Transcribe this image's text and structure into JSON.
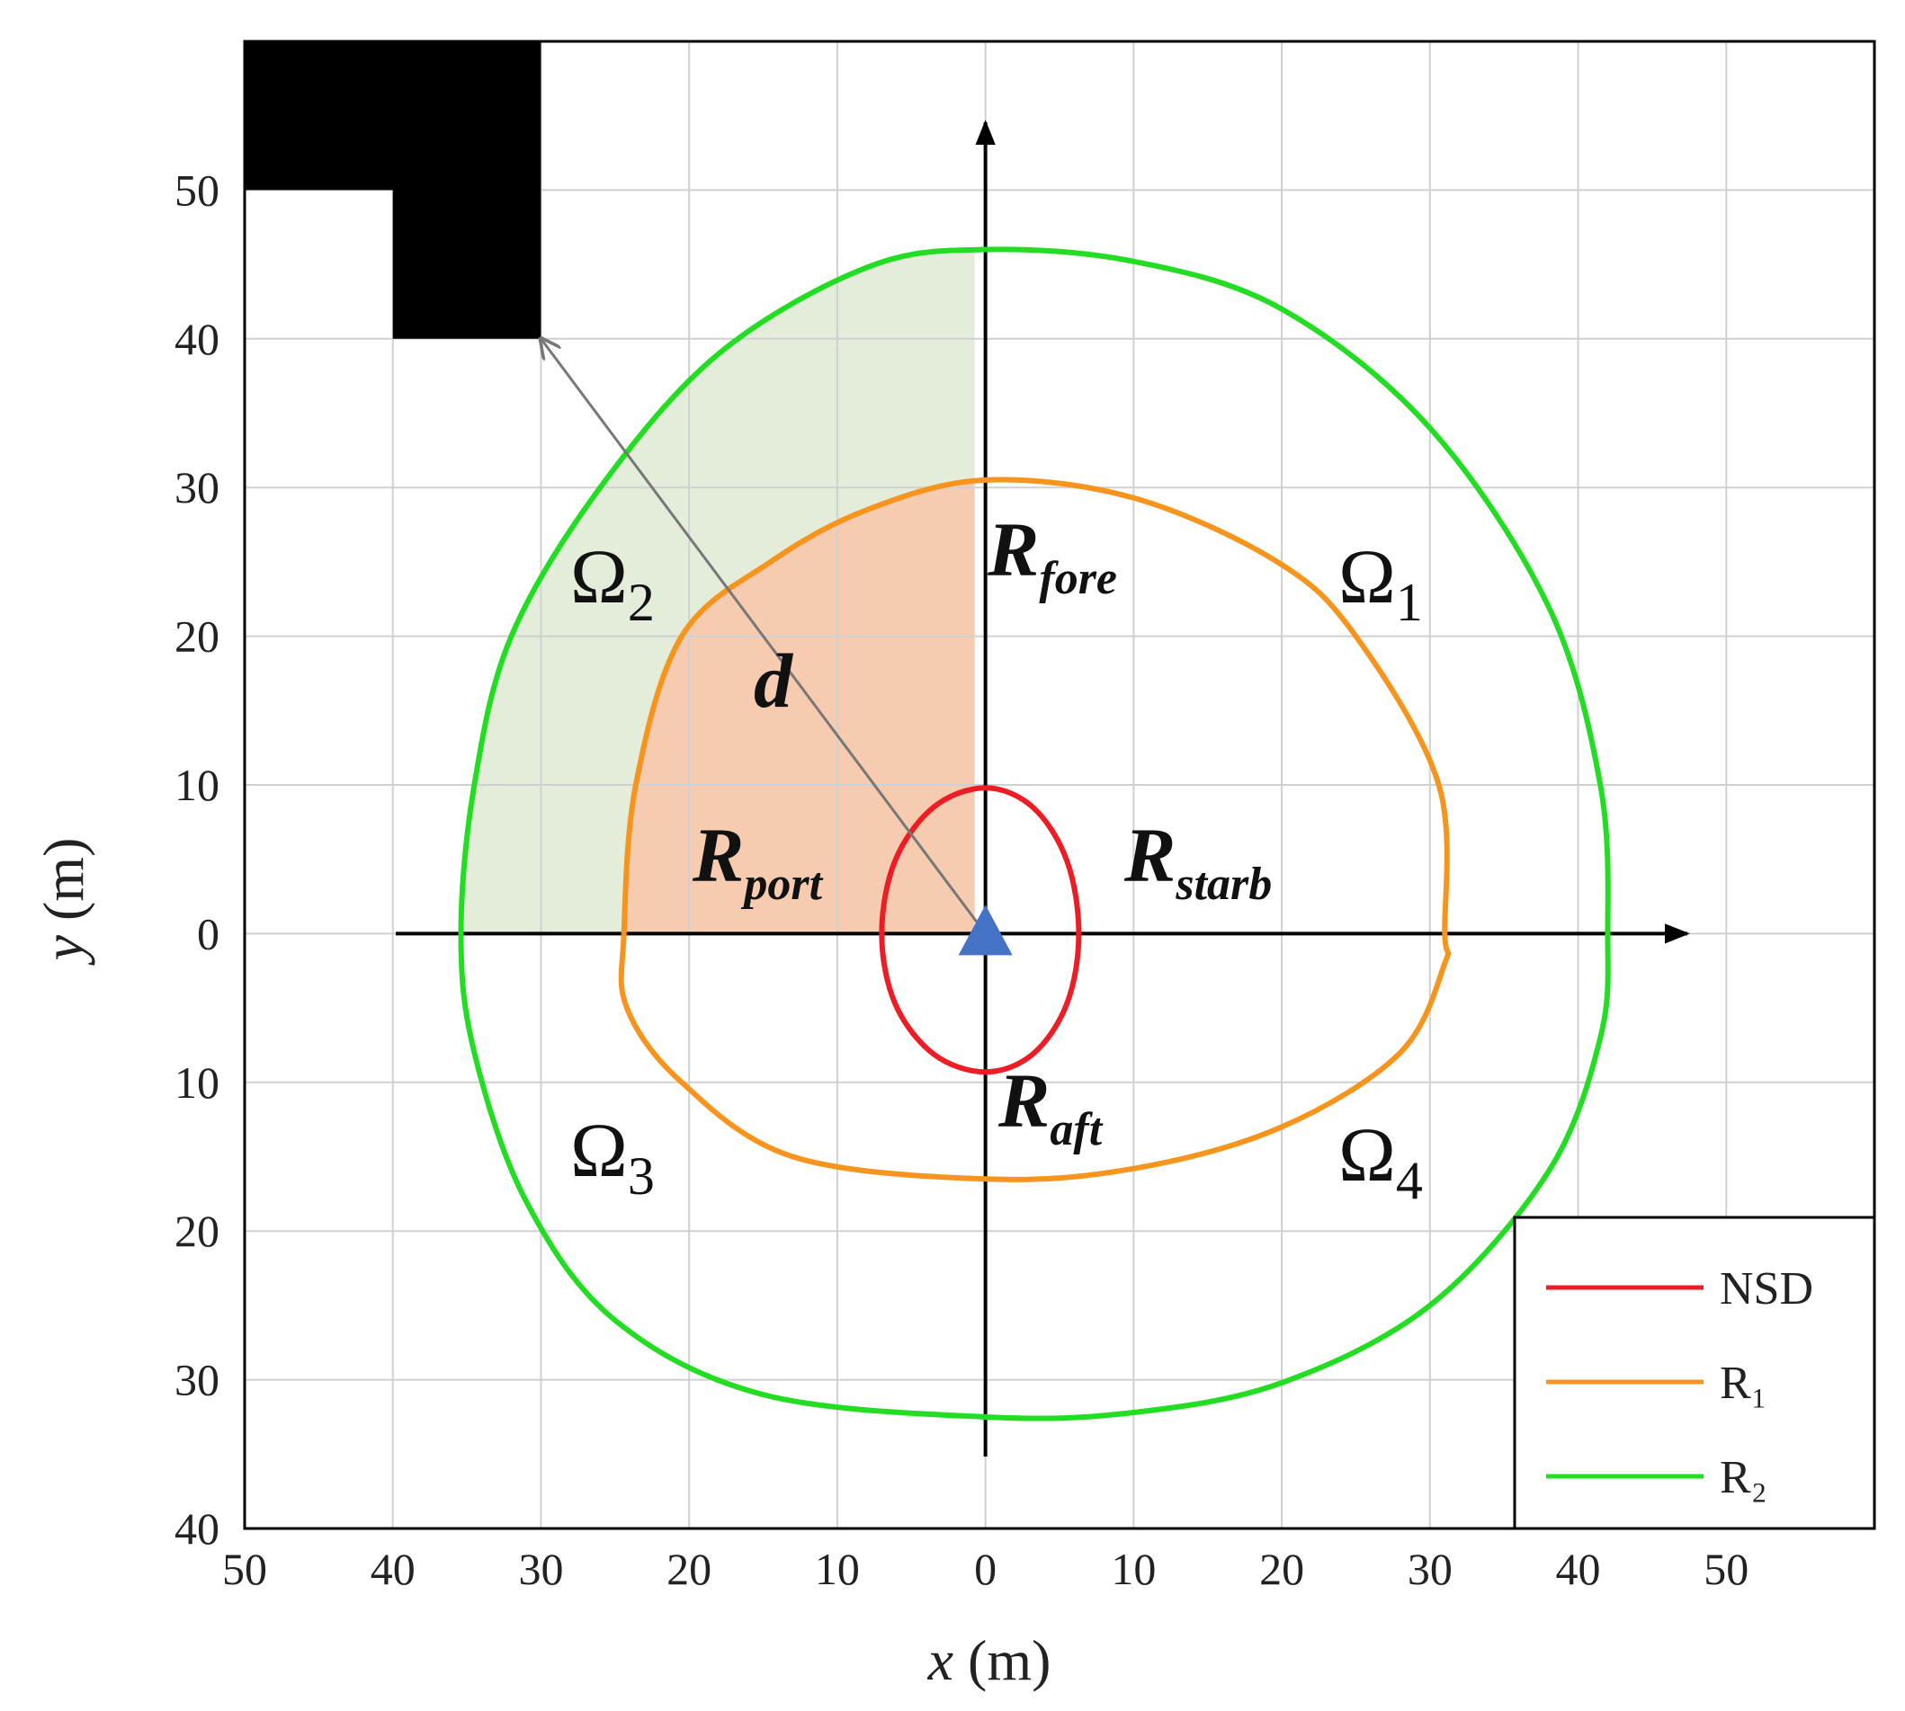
{
  "chart_data": {
    "type": "line",
    "xlabel": "x (m)",
    "ylabel": "y (m)",
    "xlim": [
      -50,
      60
    ],
    "ylim": [
      -40,
      60
    ],
    "xticks": [
      {
        "value": -50,
        "label": "50"
      },
      {
        "value": -40,
        "label": "40"
      },
      {
        "value": -30,
        "label": "30"
      },
      {
        "value": -20,
        "label": "20"
      },
      {
        "value": -10,
        "label": "10"
      },
      0,
      10,
      20,
      30,
      40,
      50
    ],
    "yticks": [
      {
        "value": -40,
        "label": "40"
      },
      {
        "value": -30,
        "label": "30"
      },
      {
        "value": -20,
        "label": "20"
      },
      {
        "value": -10,
        "label": "10"
      },
      0,
      10,
      20,
      30,
      40,
      50
    ],
    "grid": true,
    "legend": "lower right",
    "series": [
      {
        "name": "NSD",
        "color": "#ee1c25",
        "x": [
          6.3,
          5.5,
          3.2,
          0,
          -3.5,
          -6.1,
          -7,
          -6.1,
          -3.5,
          0,
          3.2,
          5.5
        ],
        "y": [
          0,
          4.9,
          8.5,
          9.8,
          8.5,
          4.9,
          0,
          -4.7,
          -8.1,
          -9.3,
          -8.1,
          -4.7
        ]
      },
      {
        "name": "R₁",
        "color": "#f7941d",
        "x": [
          31,
          30.6,
          25,
          19.7,
          10,
          0,
          -8,
          -14.5,
          -20.5,
          -23.6,
          -24.4,
          -24.2,
          -20.5,
          -13,
          0,
          10,
          20,
          28,
          31
        ],
        "y": [
          0,
          10,
          20,
          25,
          29.3,
          30.5,
          28.5,
          25,
          20,
          10,
          0,
          -5,
          -10,
          -15,
          -16.5,
          -15.8,
          -13,
          -8,
          -2
        ]
      },
      {
        "name": "R₂",
        "color": "#22dd22",
        "x": [
          42,
          41.5,
          38,
          30,
          20,
          10,
          0,
          -8,
          -18,
          -26,
          -32,
          -34.5,
          -35.4,
          -34.5,
          -31,
          -25,
          -15,
          0,
          10,
          20,
          30,
          38,
          41.5
        ],
        "y": [
          0,
          10,
          22,
          34,
          42,
          45.2,
          46,
          44.8,
          39,
          30,
          20,
          10,
          0,
          -8,
          -18,
          -26,
          -31,
          -32.5,
          -32.2,
          -30.2,
          -25,
          -16,
          -7
        ]
      }
    ],
    "obstacle": {
      "x": [
        -50,
        -30,
        -30,
        -40,
        -40,
        -50
      ],
      "y": [
        60,
        60,
        40,
        40,
        50,
        50
      ]
    },
    "annotations": [
      {
        "text": "Ω",
        "sub": "1"
      },
      {
        "text": "Ω",
        "sub": "2"
      },
      {
        "text": "Ω",
        "sub": "3"
      },
      {
        "text": "Ω",
        "sub": "4"
      },
      {
        "text": "R",
        "sub": "fore"
      },
      {
        "text": "R",
        "sub": "port"
      },
      {
        "text": "R",
        "sub": "starb"
      },
      {
        "text": "R",
        "sub": "aft"
      },
      {
        "text": "d"
      }
    ]
  }
}
